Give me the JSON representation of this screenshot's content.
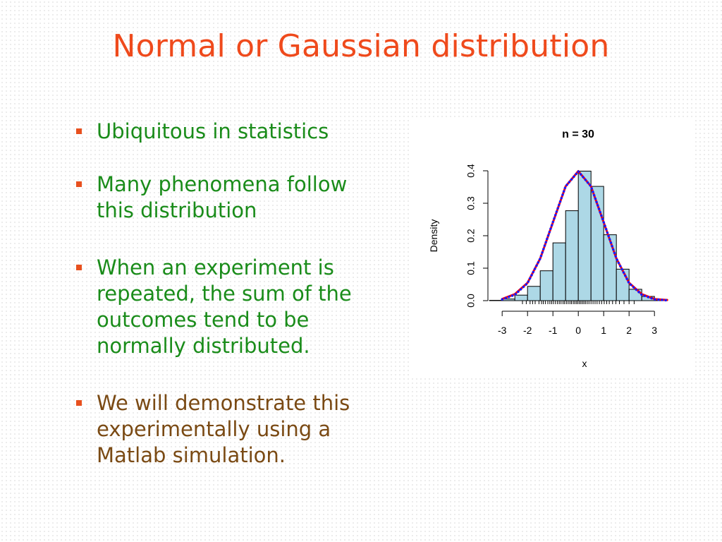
{
  "slide": {
    "title": "Normal or Gaussian distribution",
    "title_color": "#ef4a1c",
    "bullet_marker_color": "#e8501e",
    "bullets": [
      {
        "lines": [
          "Ubiquitous in statistics"
        ],
        "color": "#1a8c1a"
      },
      {
        "lines": [
          "Many phenomena follow",
          "this distribution"
        ],
        "color": "#1a8c1a"
      },
      {
        "lines": [
          "When an experiment is",
          "repeated, the sum of the",
          "outcomes tend to be",
          "normally distributed."
        ],
        "color": "#1a8c1a"
      },
      {
        "lines": [
          "We will demonstrate this",
          "experimentally using a",
          "Matlab simulation."
        ],
        "color": "#7a4a14"
      }
    ]
  },
  "chart_data": {
    "type": "bar",
    "title": "n = 30",
    "xlabel": "x",
    "ylabel": "Density",
    "xlim": [
      -3.2,
      3.8
    ],
    "ylim": [
      0,
      0.4
    ],
    "xticks": [
      -3,
      -2,
      -1,
      0,
      1,
      2,
      3
    ],
    "yticks": [
      0.0,
      0.1,
      0.2,
      0.3,
      0.4
    ],
    "ytick_labels": [
      "0.0",
      "0.1",
      "0.2",
      "0.3",
      "0.4"
    ],
    "bin_edges": [
      -3.5,
      -3.0,
      -2.5,
      -2.0,
      -1.5,
      -1.0,
      -0.5,
      0.0,
      0.5,
      1.0,
      1.5,
      2.0,
      2.5,
      3.0,
      3.5
    ],
    "densities": [
      0.001,
      0.005,
      0.017,
      0.044,
      0.092,
      0.178,
      0.277,
      0.399,
      0.352,
      0.203,
      0.097,
      0.035,
      0.013,
      0.004
    ],
    "bar_fill": "#add8e6",
    "bar_stroke": "#000000",
    "curves": [
      {
        "style": "solid",
        "color": "#ff0000",
        "x": [
          -3.0,
          -2.5,
          -2.0,
          -1.5,
          -1.0,
          -0.5,
          0.0,
          0.5,
          1.0,
          1.5,
          2.0,
          2.5,
          3.0,
          3.5
        ],
        "y": [
          0.005,
          0.02,
          0.055,
          0.13,
          0.241,
          0.352,
          0.399,
          0.352,
          0.241,
          0.13,
          0.055,
          0.02,
          0.005,
          0.002
        ]
      },
      {
        "style": "dotted",
        "color": "#1a1aff",
        "x": [
          -3.0,
          -2.5,
          -2.0,
          -1.5,
          -1.0,
          -0.5,
          0.0,
          0.5,
          1.0,
          1.5,
          2.0,
          2.5,
          3.0,
          3.5
        ],
        "y": [
          0.004,
          0.018,
          0.054,
          0.13,
          0.242,
          0.352,
          0.398,
          0.352,
          0.242,
          0.13,
          0.054,
          0.018,
          0.004,
          0.001
        ]
      }
    ],
    "rug_x": [
      -2.2,
      -2.05,
      -1.9,
      -1.8,
      -1.7,
      -1.55,
      -1.45,
      -1.38,
      -1.3,
      -1.2,
      -1.12,
      -1.05,
      -0.98,
      -0.9,
      -0.82,
      -0.75,
      -0.68,
      -0.6,
      -0.54,
      -0.47,
      -0.4,
      -0.33,
      -0.27,
      -0.2,
      -0.14,
      -0.08,
      -0.02,
      0.04,
      0.1,
      0.16,
      0.22,
      0.28,
      0.35,
      0.42,
      0.5,
      0.58,
      0.66,
      0.74,
      0.83,
      0.92,
      1.02,
      1.12,
      1.22,
      1.35,
      1.48,
      1.62,
      1.8,
      2.0,
      2.2
    ]
  }
}
